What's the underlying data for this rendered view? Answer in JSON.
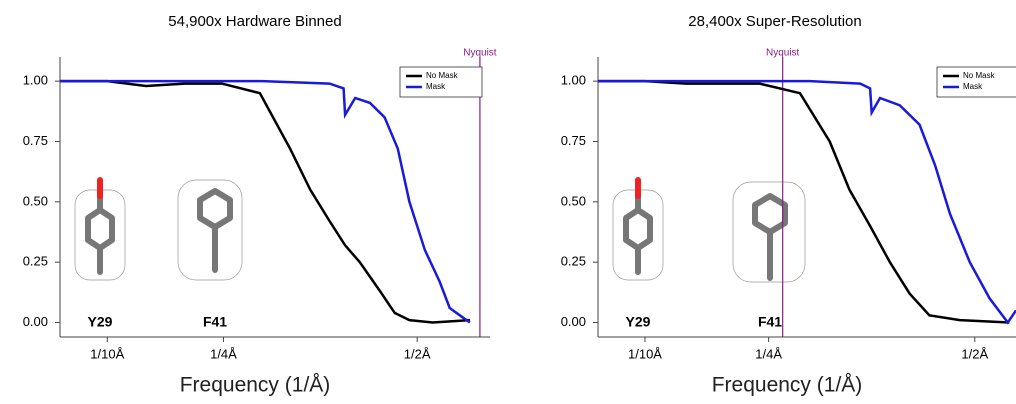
{
  "chart_data": [
    {
      "type": "line",
      "title": "54,900x  Hardware Binned",
      "xlabel": "Frequency (1/Å)",
      "xlim": [
        0.039,
        0.594
      ],
      "ylim": [
        -0.06,
        1.1
      ],
      "xticks": [
        {
          "value": 0.1,
          "label": "1/10Å"
        },
        {
          "value": 0.25,
          "label": "1/4Å"
        },
        {
          "value": 0.5,
          "label": "1/2Å"
        }
      ],
      "yticks": [
        {
          "value": 0,
          "label": "0.00"
        },
        0.25,
        {
          "value": 0.5,
          "label": "0.50"
        },
        0.75,
        {
          "value": 1,
          "label": "1.00"
        }
      ],
      "nyquist": {
        "label": "Nyquist",
        "value": 0.581,
        "color": "#8b1a8b"
      },
      "annotations": [
        "Y29",
        "F41"
      ],
      "series": [
        {
          "name": "No Mask",
          "color": "#000000",
          "x": [
            0.039,
            0.1,
            0.15,
            0.2,
            0.248,
            0.297,
            0.336,
            0.362,
            0.387,
            0.407,
            0.426,
            0.452,
            0.471,
            0.49,
            0.52,
            0.568
          ],
          "values": [
            1.0,
            1.0,
            0.98,
            0.99,
            0.99,
            0.95,
            0.72,
            0.55,
            0.42,
            0.32,
            0.25,
            0.13,
            0.04,
            0.01,
            0.0,
            0.01
          ]
        },
        {
          "name": "Mask",
          "color": "#1a1adb",
          "x": [
            0.039,
            0.2,
            0.3,
            0.387,
            0.405,
            0.407,
            0.42,
            0.439,
            0.458,
            0.475,
            0.49,
            0.51,
            0.529,
            0.542,
            0.555,
            0.568
          ],
          "values": [
            1.0,
            1.0,
            1.0,
            0.99,
            0.97,
            0.86,
            0.93,
            0.91,
            0.85,
            0.72,
            0.5,
            0.3,
            0.17,
            0.06,
            0.03,
            0.0
          ]
        }
      ]
    },
    {
      "type": "line",
      "title": "28,400x  Super-Resolution",
      "xlabel": "Frequency (1/Å)",
      "xlim": [
        0.043,
        0.55
      ],
      "ylim": [
        -0.06,
        1.1
      ],
      "xticks": [
        {
          "value": 0.1,
          "label": "1/10Å"
        },
        {
          "value": 0.25,
          "label": "1/4Å"
        },
        {
          "value": 0.5,
          "label": "1/2Å"
        }
      ],
      "yticks": [
        {
          "value": 0,
          "label": "0.00"
        },
        0.25,
        {
          "value": 0.5,
          "label": "0.50"
        },
        0.75,
        {
          "value": 1,
          "label": "1.00"
        }
      ],
      "nyquist": {
        "label": "Nyquist",
        "value": 0.267,
        "color": "#8b1a8b"
      },
      "annotations": [
        "Y29",
        "F41"
      ],
      "series": [
        {
          "name": "No Mask",
          "color": "#000000",
          "x": [
            0.043,
            0.1,
            0.15,
            0.2,
            0.239,
            0.288,
            0.324,
            0.348,
            0.373,
            0.397,
            0.421,
            0.445,
            0.482,
            0.542
          ],
          "values": [
            1.0,
            1.0,
            0.99,
            0.99,
            0.99,
            0.95,
            0.75,
            0.55,
            0.4,
            0.25,
            0.12,
            0.03,
            0.01,
            0.0
          ]
        },
        {
          "name": "Mask",
          "color": "#1a1adb",
          "x": [
            0.043,
            0.2,
            0.3,
            0.361,
            0.373,
            0.375,
            0.385,
            0.409,
            0.433,
            0.452,
            0.47,
            0.494,
            0.518,
            0.54,
            0.55
          ],
          "values": [
            1.0,
            1.0,
            1.0,
            0.99,
            0.97,
            0.87,
            0.93,
            0.9,
            0.82,
            0.65,
            0.45,
            0.25,
            0.1,
            0.0,
            0.05
          ]
        }
      ]
    }
  ]
}
